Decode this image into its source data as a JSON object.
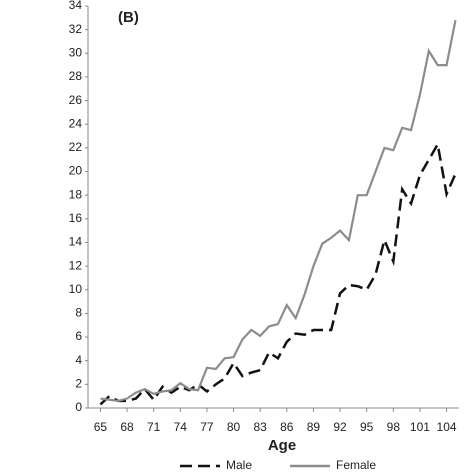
{
  "chart_data": {
    "type": "line",
    "title": "(B)",
    "x_label": "Age",
    "x": [
      65,
      66,
      67,
      68,
      69,
      70,
      71,
      72,
      73,
      74,
      75,
      76,
      77,
      78,
      79,
      80,
      81,
      82,
      83,
      84,
      85,
      86,
      87,
      88,
      89,
      90,
      91,
      92,
      93,
      94,
      95,
      96,
      97,
      98,
      99,
      100,
      101,
      102,
      103,
      104,
      105
    ],
    "series": [
      {
        "name": "Male",
        "color": "#111111",
        "dash": true,
        "values": [
          0.3,
          1.0,
          0.6,
          0.6,
          0.8,
          1.6,
          0.7,
          1.8,
          1.3,
          1.8,
          1.5,
          2.0,
          1.4,
          2.0,
          2.5,
          3.8,
          2.7,
          3.0,
          3.2,
          4.7,
          4.2,
          5.6,
          6.3,
          6.2,
          6.6,
          6.6,
          6.6,
          9.7,
          10.4,
          10.3,
          10.0,
          11.3,
          14.2,
          12.4,
          18.5,
          17.3,
          19.7,
          21.0,
          22.3,
          18.1,
          19.8
        ]
      },
      {
        "name": "Female",
        "color": "#8c8c8c",
        "dash": false,
        "values": [
          0.8,
          0.7,
          0.6,
          0.8,
          1.3,
          1.6,
          1.2,
          1.4,
          1.5,
          2.1,
          1.6,
          1.5,
          3.4,
          3.3,
          4.2,
          4.3,
          5.8,
          6.6,
          6.1,
          6.9,
          7.1,
          8.7,
          7.6,
          9.6,
          12.0,
          13.9,
          14.4,
          15.0,
          14.2,
          18.0,
          18.0,
          20.0,
          22.0,
          21.8,
          23.7,
          23.5,
          26.5,
          30.2,
          29.0,
          29.0,
          32.8
        ]
      }
    ],
    "xlim": [
      63.6,
      105.4
    ],
    "xticks": [
      65,
      68,
      71,
      74,
      77,
      80,
      83,
      86,
      89,
      92,
      95,
      98,
      101,
      104
    ],
    "ylim": [
      0,
      34
    ],
    "yticks": [
      0,
      2,
      4,
      6,
      8,
      10,
      12,
      14,
      16,
      18,
      20,
      22,
      24,
      26,
      28,
      30,
      32,
      34
    ]
  }
}
